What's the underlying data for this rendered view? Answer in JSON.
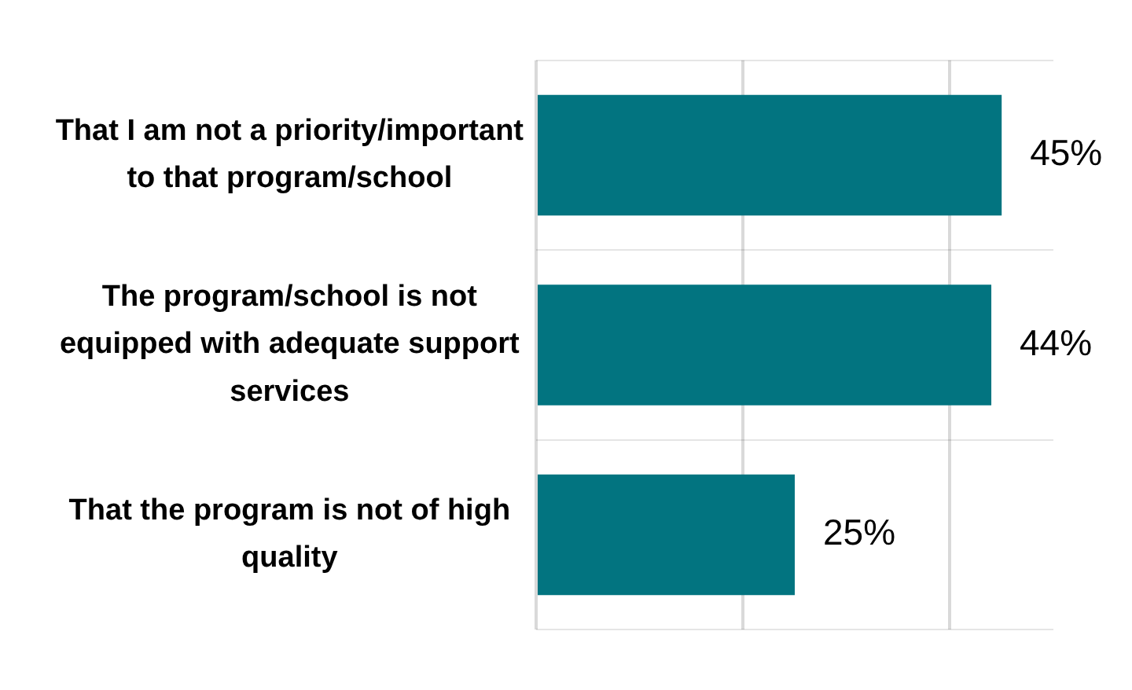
{
  "chart_data": {
    "type": "bar",
    "orientation": "horizontal",
    "categories": [
      "That I am not a priority/important to that program/school",
      "The program/school is not equipped with adequate support services",
      "That the program is not of high quality"
    ],
    "values": [
      45,
      44,
      25
    ],
    "color": "#027480",
    "value_labels": [
      "45%",
      "44%",
      "25%"
    ],
    "xlim": [
      0,
      50
    ],
    "xticks": [
      0,
      20,
      40
    ],
    "grid": true,
    "tick_labels": "y",
    "legend": false
  }
}
